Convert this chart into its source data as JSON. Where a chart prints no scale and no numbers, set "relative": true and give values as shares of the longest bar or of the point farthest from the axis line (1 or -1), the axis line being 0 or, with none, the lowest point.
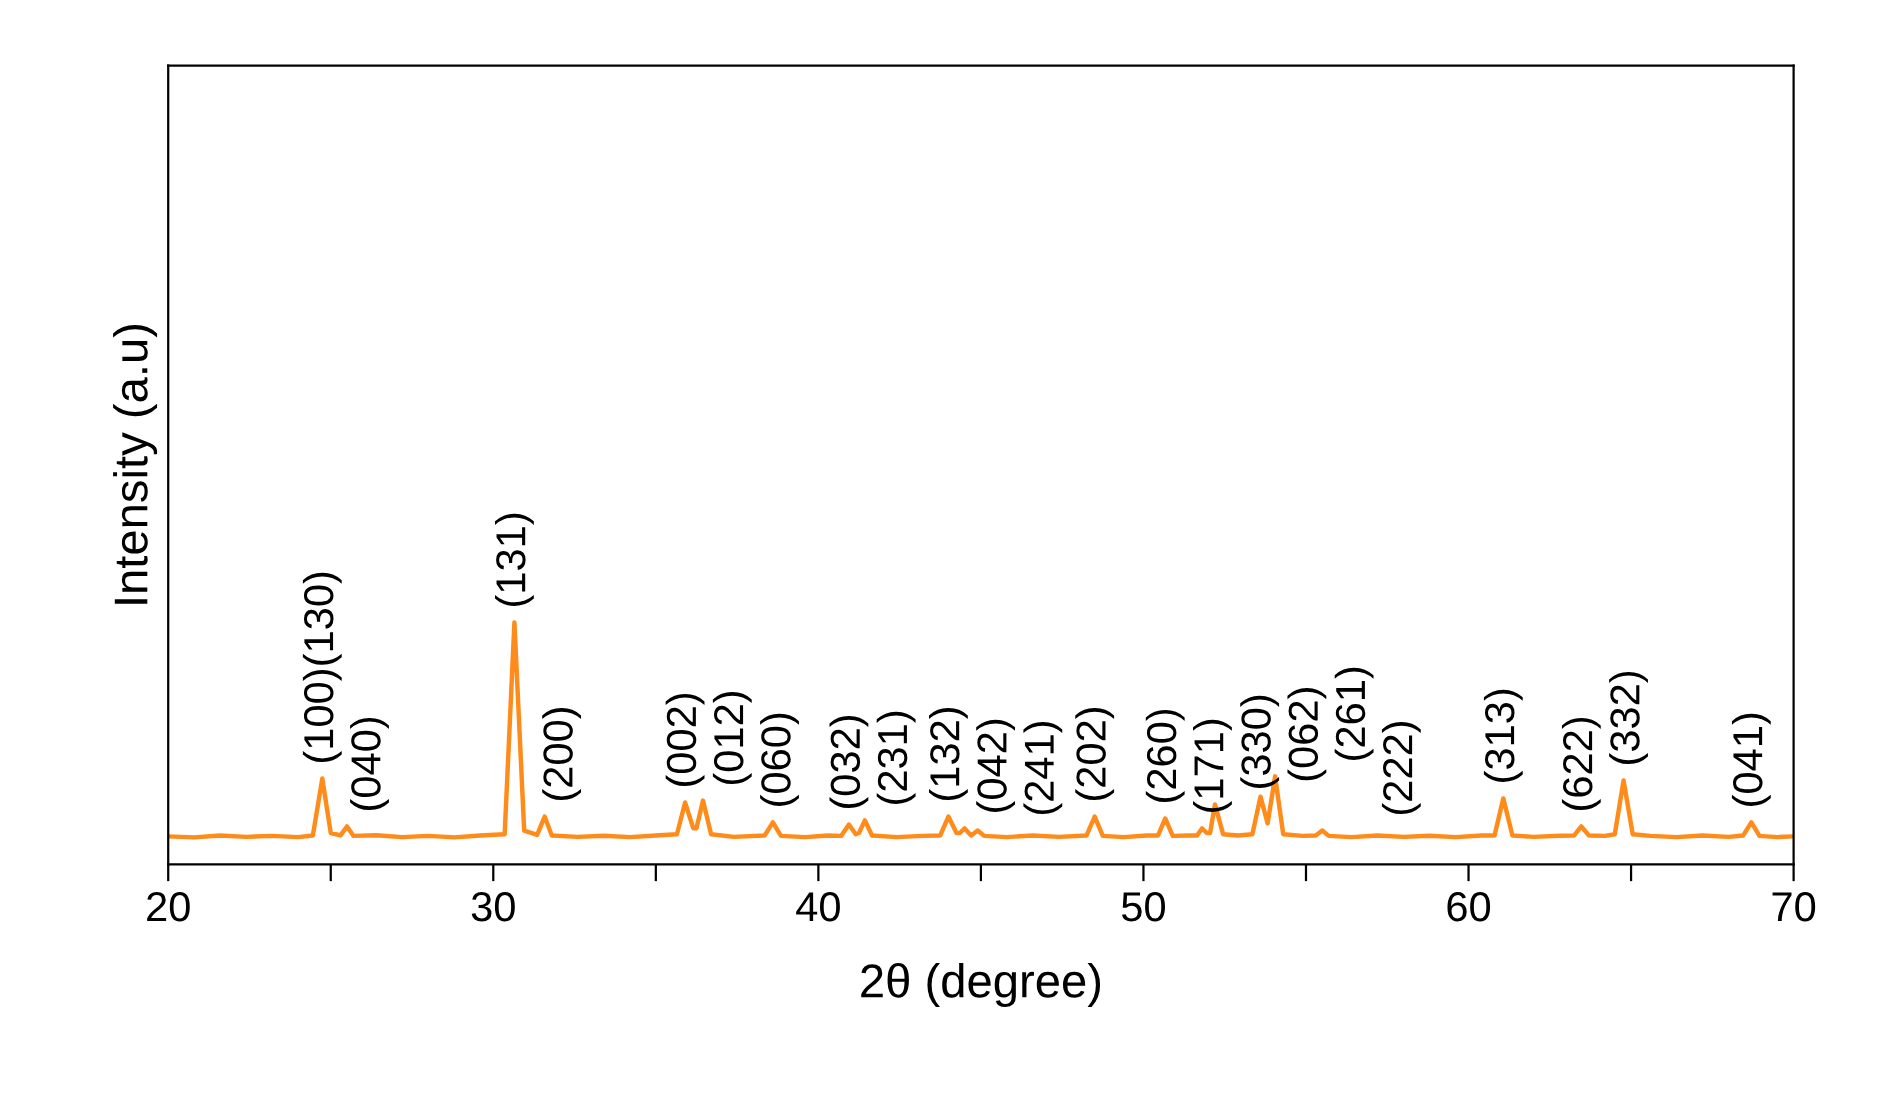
{
  "chart_data": {
    "type": "line",
    "xlabel": "2θ (degree)",
    "ylabel": "Intensity (a.u)",
    "relative": true,
    "xlim": [
      20,
      70
    ],
    "xticks": [
      20,
      {
        "value": 25,
        "label": null
      },
      30,
      {
        "value": 35,
        "label": null
      },
      40,
      {
        "value": 45,
        "label": null
      },
      50,
      {
        "value": 55,
        "label": null
      },
      60,
      {
        "value": 65,
        "label": null
      },
      70
    ],
    "grid": false,
    "legend": false,
    "marker": "none",
    "line_style": "solid",
    "tick_labels": "x",
    "series": [
      {
        "color": "#ff8c1a",
        "x": [
          20,
          20.8,
          21.6,
          22.4,
          23.2,
          24.0,
          24.45,
          24.74,
          25.0,
          25.3,
          25.5,
          25.7,
          26.4,
          27.2,
          28.0,
          28.8,
          29.6,
          30.35,
          30.65,
          30.95,
          31.35,
          31.58,
          31.8,
          32.6,
          33.4,
          34.2,
          35.0,
          35.65,
          35.9,
          36.15,
          36.25,
          36.45,
          36.7,
          37.4,
          38.35,
          38.6,
          38.85,
          39.6,
          40.3,
          40.7,
          40.94,
          41.15,
          41.25,
          41.43,
          41.65,
          42.4,
          43.2,
          43.75,
          44.0,
          44.25,
          44.35,
          44.5,
          44.7,
          44.9,
          45.1,
          45.8,
          46.6,
          47.4,
          48.25,
          48.5,
          48.75,
          49.4,
          50.1,
          50.45,
          50.67,
          50.9,
          51.4,
          51.65,
          51.8,
          51.95,
          52.05,
          52.2,
          52.45,
          52.9,
          53.35,
          53.6,
          53.82,
          54.05,
          54.3,
          54.9,
          55.3,
          55.5,
          55.7,
          56.4,
          57.2,
          58.0,
          58.8,
          59.6,
          60.4,
          60.8,
          61.07,
          61.35,
          62.0,
          62.8,
          63.25,
          63.47,
          63.7,
          64.2,
          64.5,
          64.77,
          65.05,
          65.6,
          66.4,
          67.2,
          68.0,
          68.45,
          68.7,
          68.95,
          69.5,
          70
        ],
        "values": [
          0.116,
          0.112,
          0.12,
          0.114,
          0.118,
          0.113,
          0.12,
          0.355,
          0.13,
          0.12,
          0.157,
          0.118,
          0.121,
          0.113,
          0.118,
          0.112,
          0.12,
          0.125,
          1.0,
          0.14,
          0.122,
          0.198,
          0.12,
          0.114,
          0.119,
          0.113,
          0.12,
          0.125,
          0.256,
          0.15,
          0.15,
          0.264,
          0.125,
          0.114,
          0.12,
          0.174,
          0.118,
          0.113,
          0.12,
          0.118,
          0.165,
          0.125,
          0.13,
          0.182,
          0.12,
          0.113,
          0.118,
          0.12,
          0.198,
          0.13,
          0.13,
          0.149,
          0.12,
          0.14,
          0.118,
          0.113,
          0.12,
          0.114,
          0.12,
          0.198,
          0.118,
          0.113,
          0.12,
          0.12,
          0.19,
          0.118,
          0.12,
          0.12,
          0.149,
          0.13,
          0.13,
          0.248,
          0.125,
          0.12,
          0.125,
          0.28,
          0.17,
          0.364,
          0.125,
          0.118,
          0.12,
          0.14,
          0.118,
          0.113,
          0.12,
          0.114,
          0.119,
          0.113,
          0.12,
          0.12,
          0.273,
          0.12,
          0.114,
          0.119,
          0.12,
          0.157,
          0.12,
          0.118,
          0.125,
          0.347,
          0.125,
          0.118,
          0.113,
          0.12,
          0.114,
          0.12,
          0.174,
          0.118,
          0.113,
          0.116
        ]
      }
    ],
    "annotations": [
      {
        "text": "(100)(130)",
        "x": 24.74,
        "y": 0.355
      },
      {
        "text": "(040)",
        "x": 25.5,
        "y": 0.157
      },
      {
        "text": "(131)",
        "x": 30.65,
        "y": 1.0
      },
      {
        "text": "(200)",
        "x": 31.58,
        "y": 0.198
      },
      {
        "text": "(002)",
        "x": 35.9,
        "y": 0.256
      },
      {
        "text": "(012)",
        "x": 36.45,
        "y": 0.264
      },
      {
        "text": "(060)",
        "x": 38.6,
        "y": 0.174
      },
      {
        "text": "(032)",
        "x": 40.94,
        "y": 0.165
      },
      {
        "text": "(231)",
        "x": 41.43,
        "y": 0.182
      },
      {
        "text": "(132)",
        "x": 44.0,
        "y": 0.198
      },
      {
        "text": "(042)",
        "x": 44.5,
        "y": 0.149
      },
      {
        "text": "(241)",
        "x": 44.9,
        "y": 0.14
      },
      {
        "text": "(202)",
        "x": 48.5,
        "y": 0.198
      },
      {
        "text": "(260)",
        "x": 50.67,
        "y": 0.19
      },
      {
        "text": "(171)",
        "x": 51.8,
        "y": 0.149
      },
      {
        "text": "(330)",
        "x": 52.2,
        "y": 0.248
      },
      {
        "text": "(062)",
        "x": 53.6,
        "y": 0.28
      },
      {
        "text": "(261)",
        "x": 54.05,
        "y": 0.364
      },
      {
        "text": "(222)",
        "x": 55.5,
        "y": 0.14
      },
      {
        "text": "(313)",
        "x": 61.07,
        "y": 0.273
      },
      {
        "text": "(622)",
        "x": 63.47,
        "y": 0.157
      },
      {
        "text": "(332)",
        "x": 64.77,
        "y": 0.347
      },
      {
        "text": "(041)",
        "x": 68.7,
        "y": 0.174
      }
    ]
  }
}
